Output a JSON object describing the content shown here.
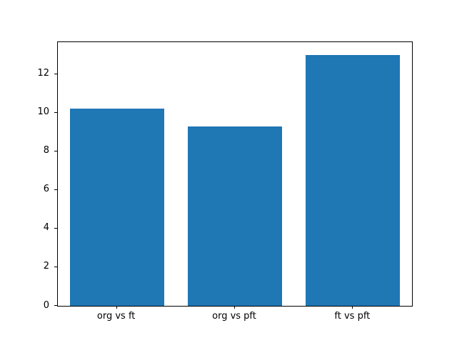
{
  "chart_data": {
    "type": "bar",
    "categories": [
      "org vs ft",
      "org vs pft",
      "ft vs pft"
    ],
    "values": [
      10.2,
      9.3,
      13.0
    ],
    "title": "",
    "xlabel": "",
    "ylabel": "",
    "ylim": [
      0,
      13.65
    ],
    "yticks": [
      0,
      2,
      4,
      6,
      8,
      10,
      12
    ],
    "bar_color": "#1f77b4",
    "background_color": "#ffffff",
    "axis_color": "#000000",
    "grid": false,
    "legend": null,
    "bar_width_fraction": 0.8
  }
}
